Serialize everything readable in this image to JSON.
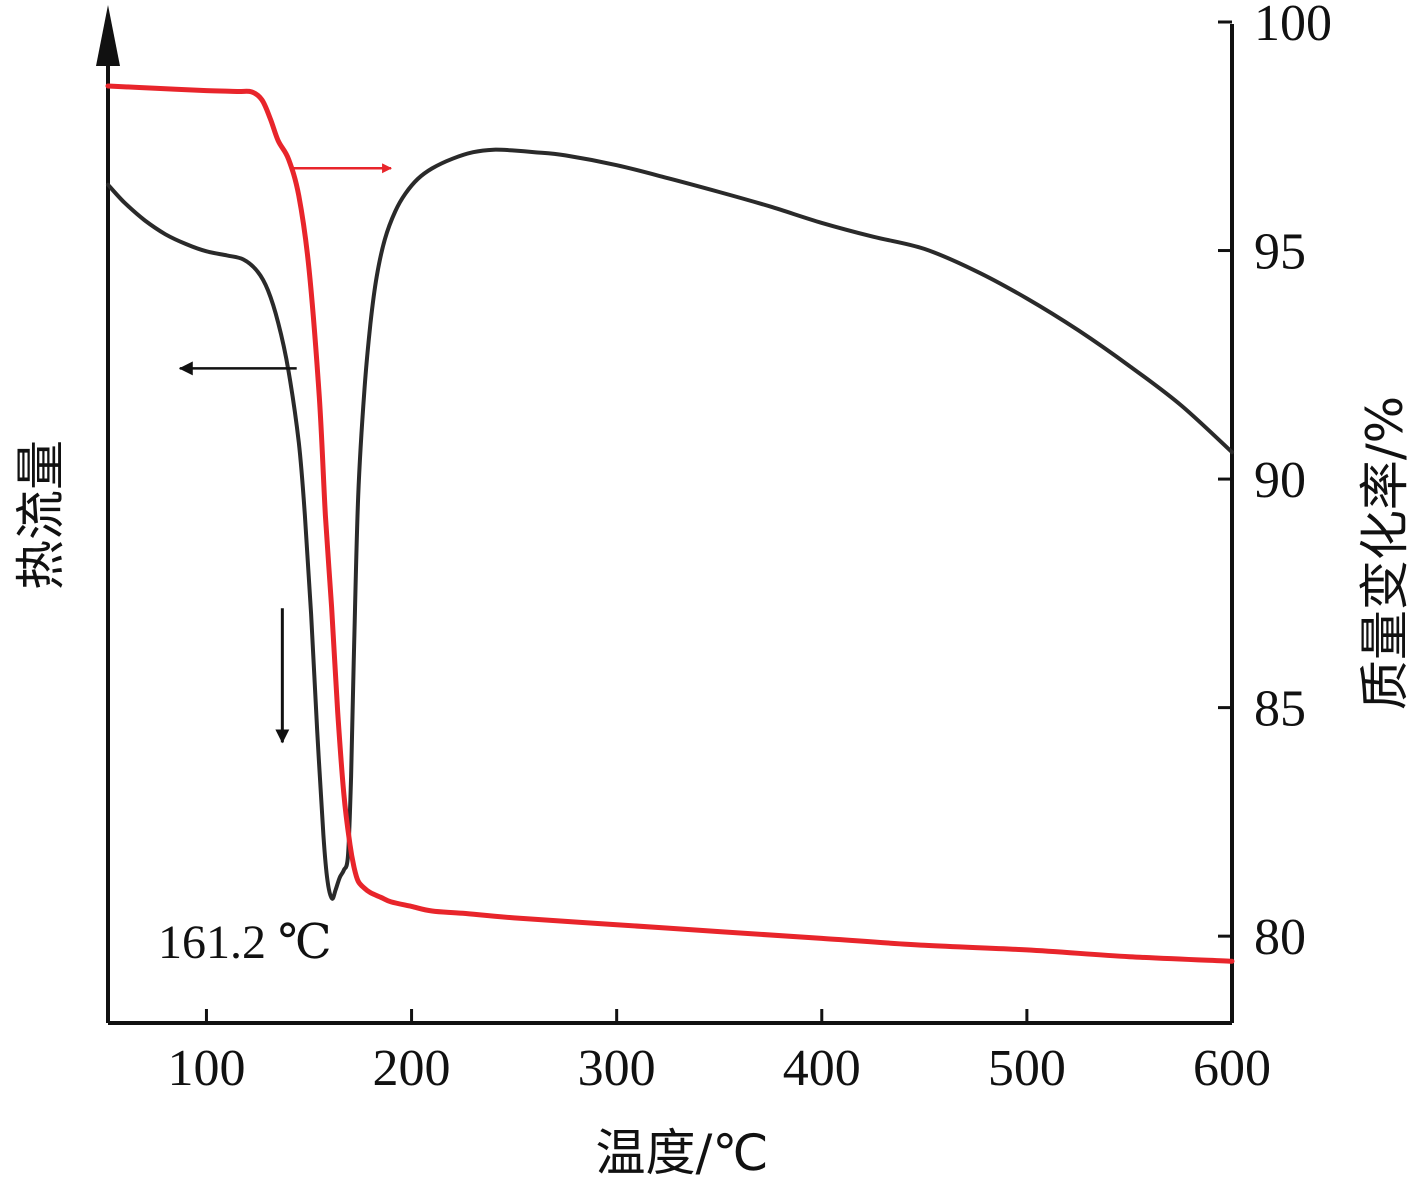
{
  "chart_data": {
    "type": "line",
    "xlabel": "温度/℃",
    "ylabel_left": "热流量",
    "ylabel_right": "质量变化率/%",
    "x_ticks": [
      100,
      200,
      300,
      400,
      500,
      600
    ],
    "x_tick_labels": [
      "100",
      "200",
      "300",
      "400",
      "500",
      "600"
    ],
    "xlim": [
      52,
      600
    ],
    "y_right_ticks": [
      80,
      85,
      90,
      95,
      100
    ],
    "y_right_tick_labels": [
      "80",
      "85",
      "90",
      "95",
      "100"
    ],
    "ylim_right": [
      78.1,
      100
    ],
    "ylim_left": [
      0,
      100
    ],
    "grid": false,
    "annotation": "161.2 ℃",
    "series": [
      {
        "role": "heat-flow",
        "axis": "left",
        "color": "#2a2a2a",
        "x": [
          52,
          60,
          70,
          80,
          90,
          100,
          110,
          118,
          125,
          130,
          135,
          140,
          145,
          148,
          151,
          154,
          157,
          159,
          161.2,
          163,
          165,
          167,
          169,
          170.5,
          172,
          174,
          177,
          180,
          183,
          187,
          192,
          197,
          203,
          210,
          220,
          230,
          240,
          250,
          260,
          275,
          300,
          325,
          350,
          375,
          400,
          425,
          450,
          475,
          500,
          525,
          550,
          575,
          600
        ],
        "y": [
          88.6,
          86.4,
          84.2,
          82.5,
          81.3,
          80.4,
          79.9,
          79.4,
          77.9,
          75.6,
          71.6,
          65.7,
          56.9,
          47.9,
          35.8,
          21.4,
          8.6,
          3.0,
          0.8,
          1.9,
          3.4,
          4.3,
          6.1,
          15.8,
          31.8,
          50.3,
          63.3,
          71.6,
          77.3,
          81.9,
          85.3,
          87.5,
          89.3,
          90.6,
          91.8,
          92.6,
          92.9,
          92.8,
          92.6,
          92.2,
          91.0,
          89.4,
          87.7,
          85.9,
          83.9,
          82.2,
          80.7,
          78.0,
          74.6,
          70.7,
          66.3,
          61.5,
          55.7
        ]
      },
      {
        "role": "mass-change",
        "axis": "right",
        "color": "#e8252b",
        "x": [
          52,
          75,
          100,
          115,
          122,
          127,
          131,
          135,
          140,
          145,
          150,
          155,
          158,
          161,
          164,
          167,
          170,
          172,
          174,
          177,
          180,
          185,
          190,
          200,
          210,
          225,
          250,
          300,
          350,
          400,
          450,
          500,
          550,
          600
        ],
        "y": [
          98.6,
          98.55,
          98.5,
          98.48,
          98.47,
          98.3,
          97.9,
          97.4,
          97.0,
          96.2,
          94.6,
          91.8,
          89.2,
          87.2,
          84.9,
          83.1,
          82.0,
          81.5,
          81.2,
          81.05,
          80.95,
          80.85,
          80.75,
          80.65,
          80.55,
          80.5,
          80.4,
          80.25,
          80.1,
          79.95,
          79.8,
          79.7,
          79.55,
          79.45
        ]
      }
    ],
    "series_arrows": [
      {
        "color": "#e8252b",
        "direction": "right",
        "from_x": 141,
        "to_x": 190,
        "y": 96.8,
        "axis": "right"
      },
      {
        "color": "#111111",
        "direction": "left",
        "from_x": 144,
        "to_x": 87,
        "y": 66.0,
        "axis": "left"
      },
      {
        "color": "#111111",
        "direction": "down",
        "x": 137,
        "from_y": 36.5,
        "to_y": 20.0,
        "axis": "left"
      }
    ]
  }
}
